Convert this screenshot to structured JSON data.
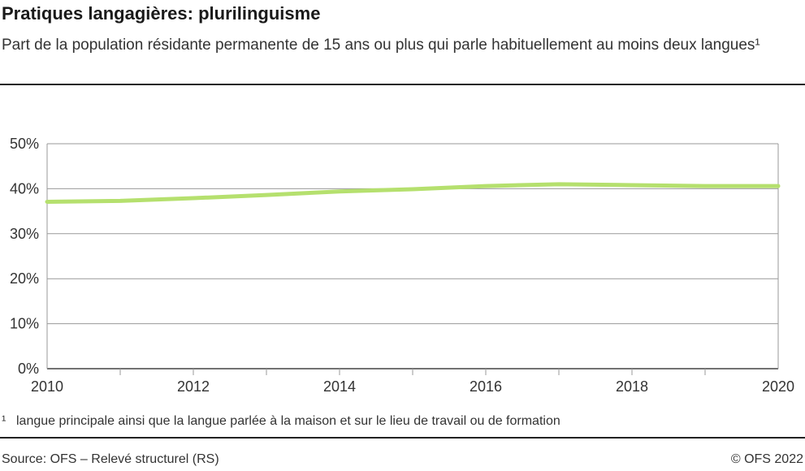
{
  "title": "Pratiques langagières: plurilinguisme",
  "subtitle": "Part de la population résidante permanente de 15 ans ou plus qui parle habituellement au moins deux langues¹",
  "footnote_mark": "¹",
  "footnote": "langue principale ainsi que la langue parlée à la maison et sur le lieu de travail ou de formation",
  "source": "Source: OFS – Relevé structurel (RS)",
  "copyright": "© OFS 2022",
  "chart_data": {
    "type": "line",
    "x": [
      2010,
      2011,
      2012,
      2013,
      2014,
      2015,
      2016,
      2017,
      2018,
      2019,
      2020
    ],
    "series": [
      {
        "values": [
          37.1,
          37.3,
          37.9,
          38.6,
          39.4,
          39.9,
          40.6,
          41.0,
          40.8,
          40.6,
          40.6
        ],
        "color": "#b5e06e"
      }
    ],
    "xlim": [
      2010,
      2020
    ],
    "ylim": [
      0,
      50
    ],
    "x_ticks": [
      "2010",
      "2012",
      "2014",
      "2016",
      "2018",
      "2020"
    ],
    "y_ticks": [
      "0%",
      "10%",
      "20%",
      "30%",
      "40%",
      "50%"
    ],
    "grid": true
  }
}
